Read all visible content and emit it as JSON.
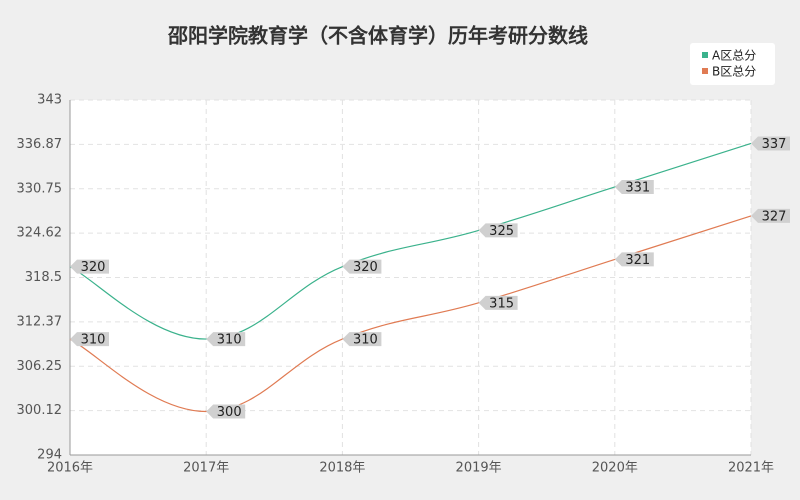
{
  "chart_data": {
    "type": "line",
    "title": "邵阳学院教育学（不含体育学）历年考研分数线",
    "categories": [
      "2016年",
      "2017年",
      "2018年",
      "2019年",
      "2020年",
      "2021年"
    ],
    "series": [
      {
        "name": "A区总分",
        "color": "#3bb28c",
        "values": [
          320,
          310,
          320,
          325,
          331,
          337
        ]
      },
      {
        "name": "B区总分",
        "color": "#e07b53",
        "values": [
          310,
          300,
          310,
          315,
          321,
          327
        ]
      }
    ],
    "ylim": [
      294,
      343
    ],
    "yticks": [
      294,
      300.12,
      306.25,
      312.37,
      318.5,
      324.62,
      330.75,
      336.87,
      343
    ],
    "grid": true,
    "legend": "top-right"
  }
}
